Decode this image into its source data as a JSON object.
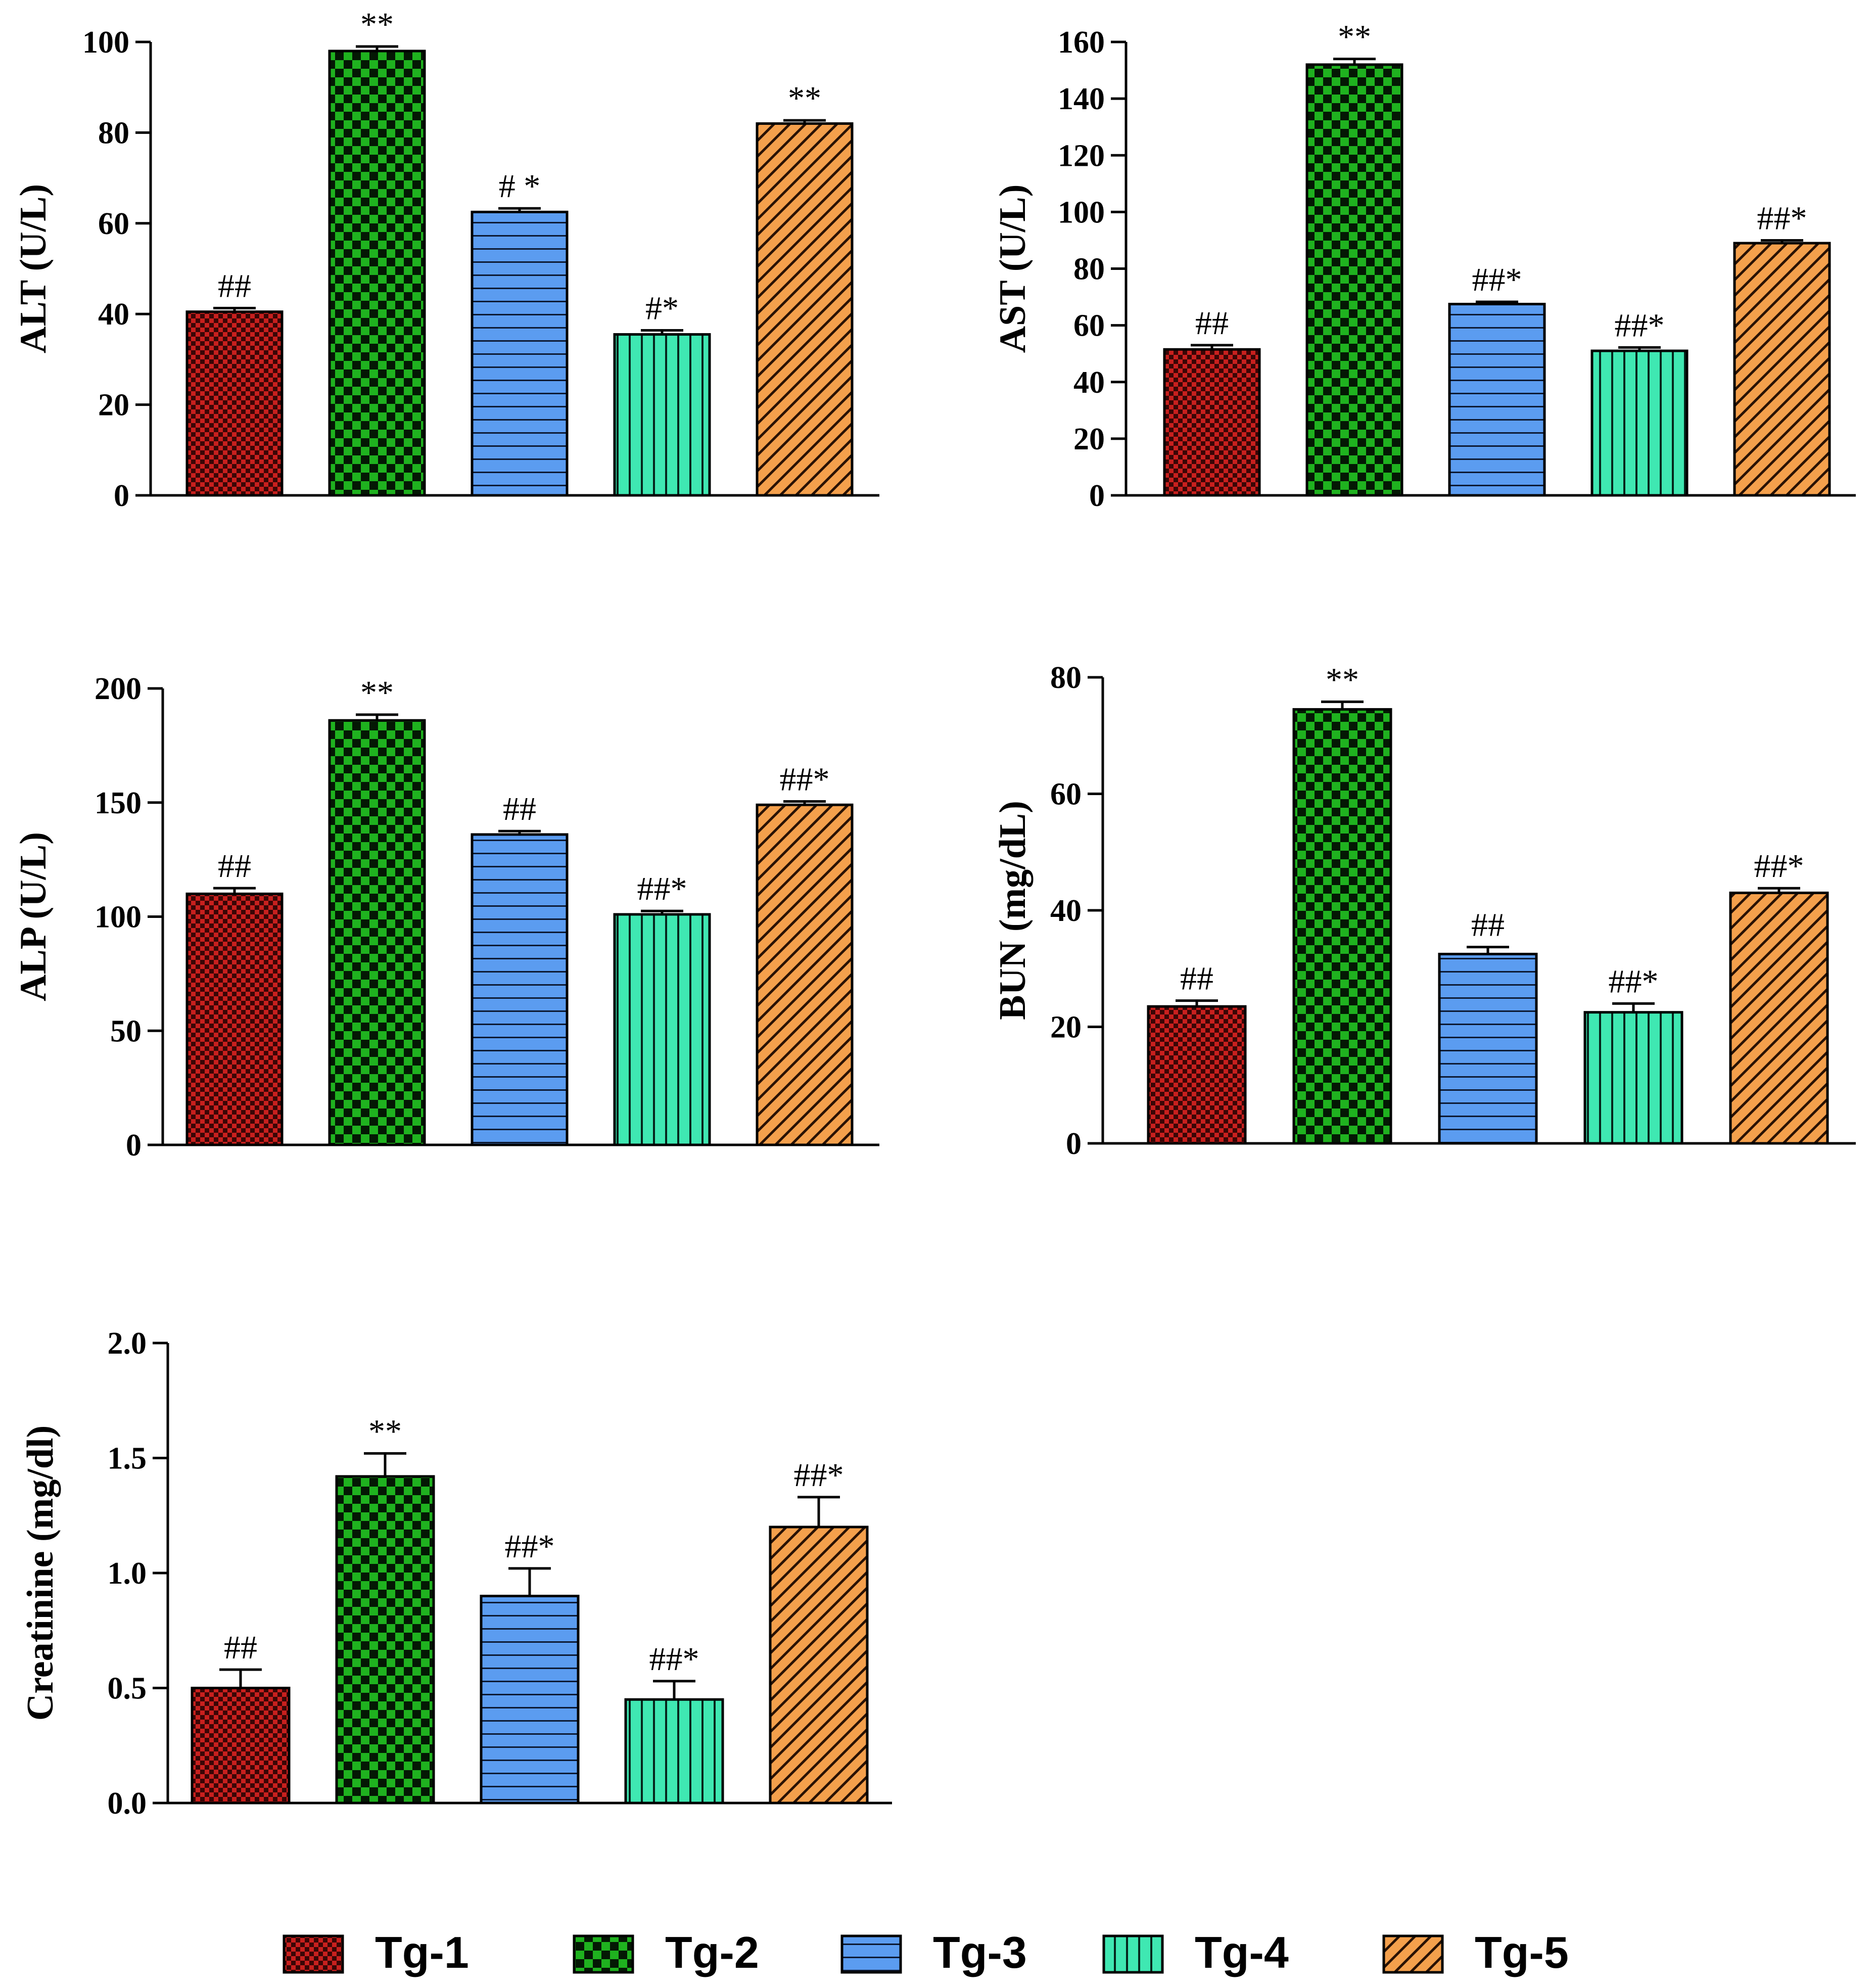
{
  "colors": {
    "Tg-1": "#c8201e",
    "Tg-2": "#1fb21f",
    "Tg-3": "#5b9cf0",
    "Tg-4": "#3fe8b2",
    "Tg-5": "#f4a04c"
  },
  "patterns": {
    "Tg-1": "checker-small",
    "Tg-2": "checker-large",
    "Tg-3": "horizontal-lines",
    "Tg-4": "vertical-lines",
    "Tg-5": "diagonal-lines"
  },
  "legend": [
    "Tg-1",
    "Tg-2",
    "Tg-3",
    "Tg-4",
    "Tg-5"
  ],
  "chart_data": [
    {
      "type": "bar",
      "ylabel": "ALT (U/L)",
      "categories": [
        "Tg-1",
        "Tg-2",
        "Tg-3",
        "Tg-4",
        "Tg-5"
      ],
      "values": [
        40.5,
        98,
        62.5,
        35.5,
        82
      ],
      "errors": [
        0.8,
        1.0,
        0.8,
        0.9,
        0.7
      ],
      "annotations": [
        "##",
        "**",
        "# *",
        "#*",
        "**"
      ],
      "ylim": [
        0,
        100
      ],
      "yticks": [
        0,
        20,
        40,
        60,
        80,
        100
      ],
      "ytick_labels": [
        "0",
        "20",
        "40",
        "60",
        "80",
        "100"
      ]
    },
    {
      "type": "bar",
      "ylabel": "AST (U/L)",
      "categories": [
        "Tg-1",
        "Tg-2",
        "Tg-3",
        "Tg-4",
        "Tg-5"
      ],
      "values": [
        51.5,
        152,
        67.5,
        51,
        89
      ],
      "errors": [
        1.5,
        2.0,
        0.8,
        1.2,
        1.0
      ],
      "annotations": [
        "##",
        "**",
        "##*",
        "##*",
        "##*"
      ],
      "ylim": [
        0,
        160
      ],
      "yticks": [
        0,
        20,
        40,
        60,
        80,
        100,
        120,
        140,
        160
      ],
      "ytick_labels": [
        "0",
        "20",
        "40",
        "60",
        "80",
        "100",
        "120",
        "140",
        "160"
      ]
    },
    {
      "type": "bar",
      "ylabel": "ALP (U/L)",
      "categories": [
        "Tg-1",
        "Tg-2",
        "Tg-3",
        "Tg-4",
        "Tg-5"
      ],
      "values": [
        110,
        186,
        136,
        101,
        149
      ],
      "errors": [
        2.5,
        2.5,
        1.5,
        1.5,
        1.5
      ],
      "annotations": [
        "##",
        "**",
        "##",
        "##*",
        "##*"
      ],
      "ylim": [
        0,
        200
      ],
      "yticks": [
        0,
        50,
        100,
        150,
        200
      ],
      "ytick_labels": [
        "0",
        "50",
        "100",
        "150",
        "200"
      ]
    },
    {
      "type": "bar",
      "ylabel": "BUN (mg/dL)",
      "categories": [
        "Tg-1",
        "Tg-2",
        "Tg-3",
        "Tg-4",
        "Tg-5"
      ],
      "values": [
        23.5,
        74.5,
        32.5,
        22.5,
        43
      ],
      "errors": [
        1.0,
        1.3,
        1.2,
        1.5,
        0.8
      ],
      "annotations": [
        "##",
        "**",
        "##",
        "##*",
        "##*"
      ],
      "ylim": [
        0,
        80
      ],
      "yticks": [
        0,
        20,
        40,
        60,
        80
      ],
      "ytick_labels": [
        "0",
        "20",
        "40",
        "60",
        "80"
      ]
    },
    {
      "type": "bar",
      "ylabel": "Creatinine (mg/dl)",
      "categories": [
        "Tg-1",
        "Tg-2",
        "Tg-3",
        "Tg-4",
        "Tg-5"
      ],
      "values": [
        0.5,
        1.42,
        0.9,
        0.45,
        1.2
      ],
      "errors": [
        0.08,
        0.1,
        0.12,
        0.08,
        0.13
      ],
      "annotations": [
        "##",
        "**",
        "##*",
        "##*",
        "##*"
      ],
      "ylim": [
        0,
        2.0
      ],
      "yticks": [
        0,
        0.5,
        1.0,
        1.5,
        2.0
      ],
      "ytick_labels": [
        "0.0",
        "0.5",
        "1.0",
        "1.5",
        "2.0"
      ]
    }
  ]
}
